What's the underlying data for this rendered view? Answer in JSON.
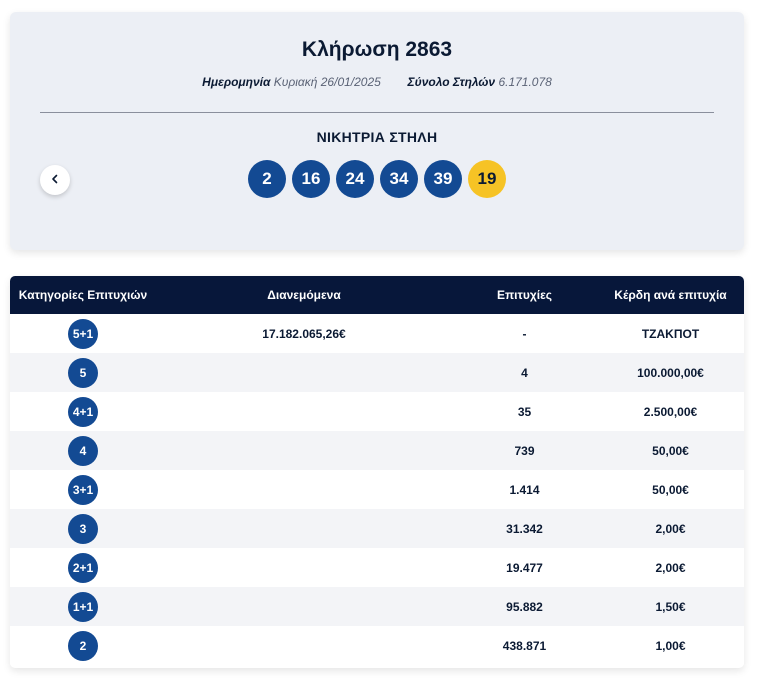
{
  "draw": {
    "title": "Κλήρωση 2863",
    "date_label": "Ημερομηνία",
    "date_value": "Κυριακή 26/01/2025",
    "columns_label": "Σύνολο Στηλών",
    "columns_value": "6.171.078",
    "winning_label": "ΝΙΚΗΤΡΙΑ ΣΤΗΛΗ",
    "numbers": [
      "2",
      "16",
      "24",
      "34",
      "39"
    ],
    "bonus": "19",
    "prev_icon": "chevron-left-icon",
    "colors": {
      "ball": "#134a93",
      "bonus": "#f6c325",
      "header": "#07173a"
    }
  },
  "table": {
    "headers": {
      "category": "Κατηγορίες Επιτυχιών",
      "distributed": "Διανεμόμενα",
      "wins": "Επιτυχίες",
      "prize": "Κέρδη ανά επιτυχία"
    },
    "rows": [
      {
        "category": "5+1",
        "distributed": "17.182.065,26€",
        "wins": "-",
        "prize": "ΤΖΑΚΠΟΤ"
      },
      {
        "category": "5",
        "distributed": "",
        "wins": "4",
        "prize": "100.000,00€"
      },
      {
        "category": "4+1",
        "distributed": "",
        "wins": "35",
        "prize": "2.500,00€"
      },
      {
        "category": "4",
        "distributed": "",
        "wins": "739",
        "prize": "50,00€"
      },
      {
        "category": "3+1",
        "distributed": "",
        "wins": "1.414",
        "prize": "50,00€"
      },
      {
        "category": "3",
        "distributed": "",
        "wins": "31.342",
        "prize": "2,00€"
      },
      {
        "category": "2+1",
        "distributed": "",
        "wins": "19.477",
        "prize": "2,00€"
      },
      {
        "category": "1+1",
        "distributed": "",
        "wins": "95.882",
        "prize": "1,50€"
      },
      {
        "category": "2",
        "distributed": "",
        "wins": "438.871",
        "prize": "1,00€"
      }
    ]
  }
}
